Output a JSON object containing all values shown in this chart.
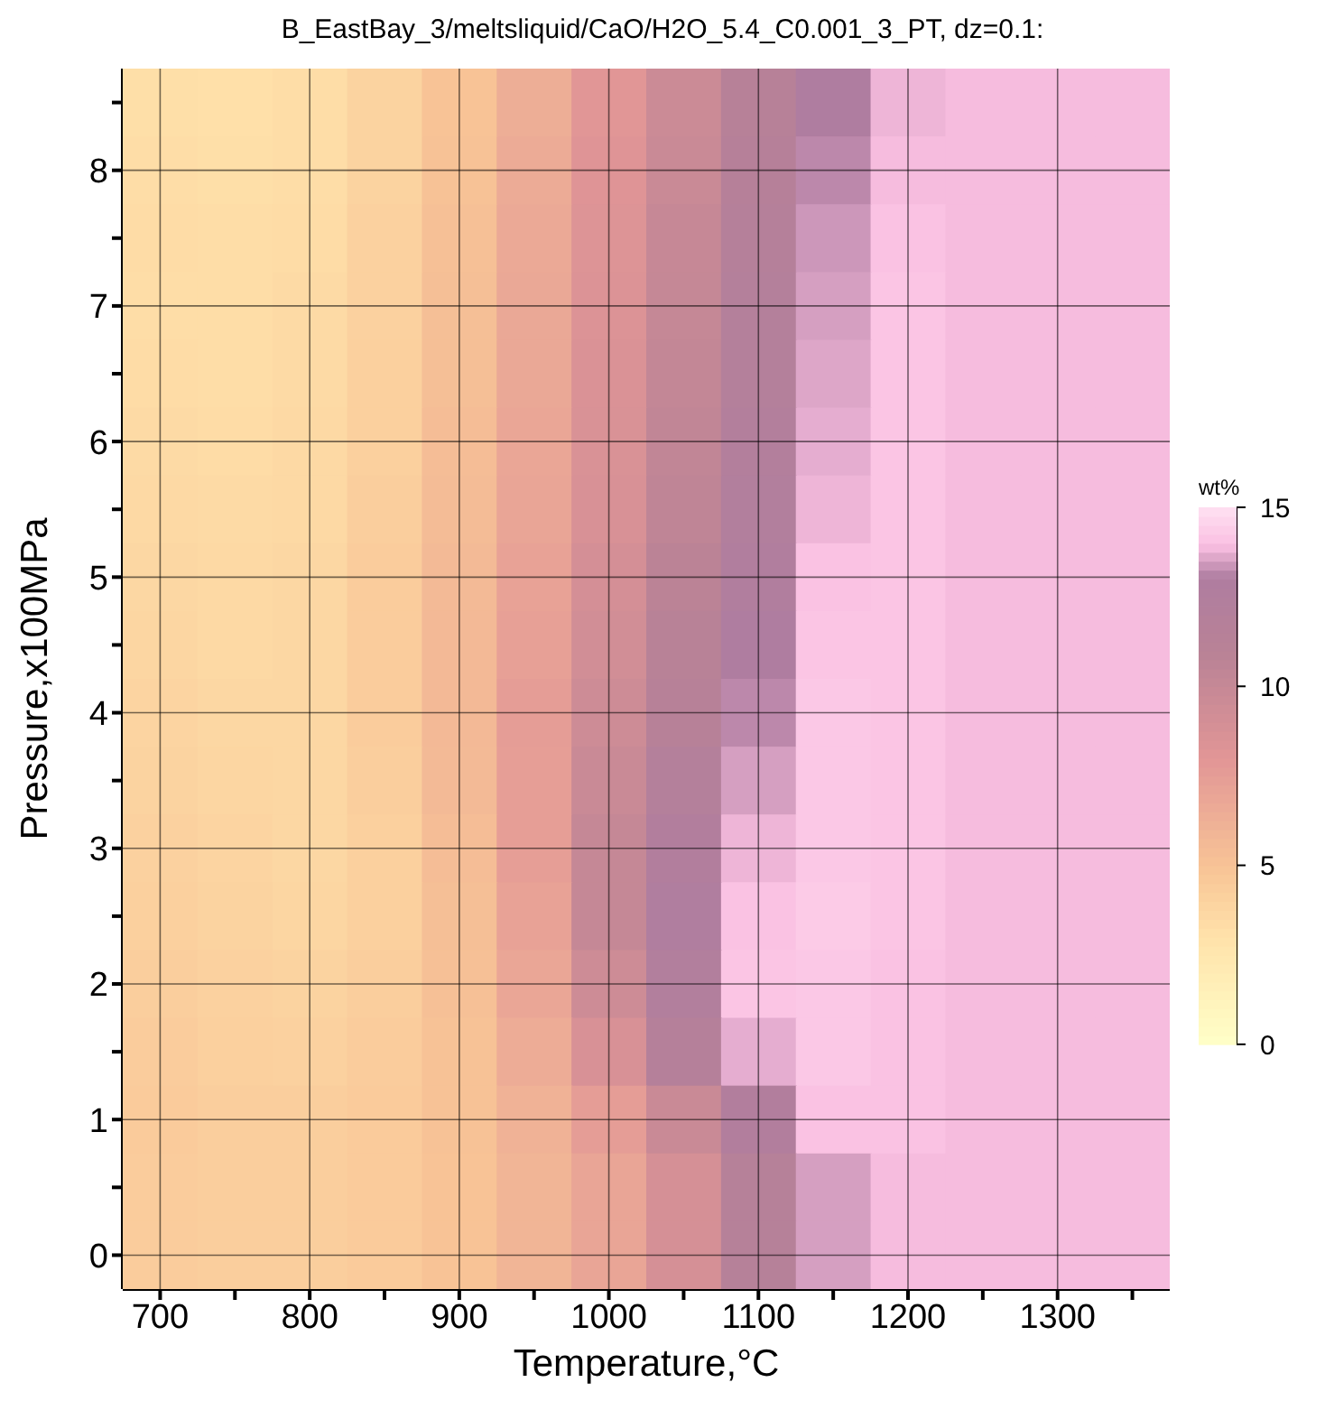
{
  "chart_data": {
    "type": "heatmap",
    "title": "B_EastBay_3/meltsliquid/CaO/H2O_5.4_C0.001_3_PT, dz=0.1:",
    "xlabel": "Temperature,°C",
    "ylabel": "Pressure,x100MPa",
    "clabel": "wt%",
    "categories": [
      "700",
      null,
      "800",
      null,
      "900",
      null,
      "1000",
      null,
      "1100",
      null,
      "1200",
      null,
      "1300",
      null
    ],
    "y_categories": [
      null,
      "8",
      null,
      "7",
      null,
      "6",
      null,
      "5",
      null,
      "4",
      null,
      "3",
      null,
      "2",
      null,
      "1",
      null,
      "0"
    ],
    "clim": [
      0,
      15
    ],
    "cticks": [
      0,
      5,
      10,
      15
    ],
    "grid": true,
    "cells": [
      [
        3.2,
        3.1,
        3.3,
        4.0,
        5.0,
        6.4,
        8.0,
        9.6,
        11.4,
        13.0,
        13.8,
        13.9,
        13.9,
        13.9
      ],
      [
        3.3,
        3.2,
        3.3,
        4.0,
        5.1,
        6.6,
        8.2,
        9.8,
        11.6,
        13.2,
        13.9,
        13.9,
        13.9,
        13.9
      ],
      [
        3.4,
        3.3,
        3.4,
        4.1,
        5.2,
        6.7,
        8.3,
        10.0,
        11.8,
        13.4,
        14.0,
        13.9,
        13.9,
        13.9
      ],
      [
        3.3,
        3.3,
        3.5,
        4.1,
        5.3,
        6.8,
        8.4,
        10.1,
        11.9,
        13.5,
        14.1,
        13.9,
        13.9,
        13.9
      ],
      [
        3.4,
        3.3,
        3.5,
        4.2,
        5.3,
        6.8,
        8.5,
        10.2,
        12.0,
        13.6,
        14.1,
        13.9,
        13.9,
        13.9
      ],
      [
        3.5,
        3.4,
        3.6,
        4.2,
        5.4,
        6.9,
        8.6,
        10.4,
        12.2,
        13.7,
        14.1,
        13.9,
        13.9,
        13.9
      ],
      [
        3.6,
        3.5,
        3.6,
        4.3,
        5.5,
        7.0,
        8.7,
        10.5,
        12.4,
        13.8,
        14.1,
        13.9,
        13.9,
        13.9
      ],
      [
        3.7,
        3.6,
        3.7,
        4.4,
        5.6,
        7.2,
        9.0,
        10.8,
        12.7,
        14.0,
        14.1,
        13.9,
        13.9,
        13.9
      ],
      [
        3.8,
        3.6,
        3.7,
        4.4,
        5.7,
        7.3,
        9.2,
        11.1,
        13.0,
        14.1,
        14.1,
        13.9,
        13.9,
        13.9
      ],
      [
        3.9,
        3.7,
        3.7,
        4.4,
        5.7,
        7.5,
        9.5,
        11.4,
        13.2,
        14.2,
        14.1,
        13.9,
        13.9,
        13.9
      ],
      [
        4.0,
        3.8,
        3.7,
        4.3,
        5.6,
        7.4,
        9.8,
        11.9,
        13.5,
        14.2,
        14.1,
        13.9,
        13.9,
        13.9
      ],
      [
        4.1,
        3.9,
        3.7,
        4.2,
        5.4,
        7.4,
        10.1,
        12.5,
        13.8,
        14.2,
        14.1,
        13.9,
        13.9,
        13.9
      ],
      [
        4.2,
        4.0,
        3.8,
        4.2,
        5.3,
        7.2,
        10.1,
        12.8,
        14.0,
        14.3,
        14.1,
        13.9,
        13.9,
        13.9
      ],
      [
        4.3,
        4.1,
        4.0,
        4.3,
        5.2,
        6.9,
        9.5,
        12.4,
        14.1,
        14.2,
        14.0,
        13.9,
        13.9,
        13.9
      ],
      [
        4.4,
        4.2,
        4.1,
        4.4,
        5.1,
        6.5,
        8.7,
        11.7,
        13.7,
        14.2,
        14.0,
        13.9,
        13.9,
        13.9
      ],
      [
        4.5,
        4.3,
        4.3,
        4.5,
        5.1,
        6.1,
        7.5,
        9.8,
        12.5,
        14.0,
        14.0,
        13.9,
        13.9,
        13.9
      ],
      [
        4.4,
        4.3,
        4.3,
        4.5,
        5.0,
        5.9,
        7.0,
        8.9,
        11.5,
        13.5,
        13.9,
        13.9,
        13.9,
        13.9
      ],
      [
        4.4,
        4.3,
        4.3,
        4.5,
        5.0,
        5.9,
        7.0,
        8.9,
        11.5,
        13.5,
        13.9,
        13.9,
        13.9,
        13.9
      ]
    ]
  }
}
